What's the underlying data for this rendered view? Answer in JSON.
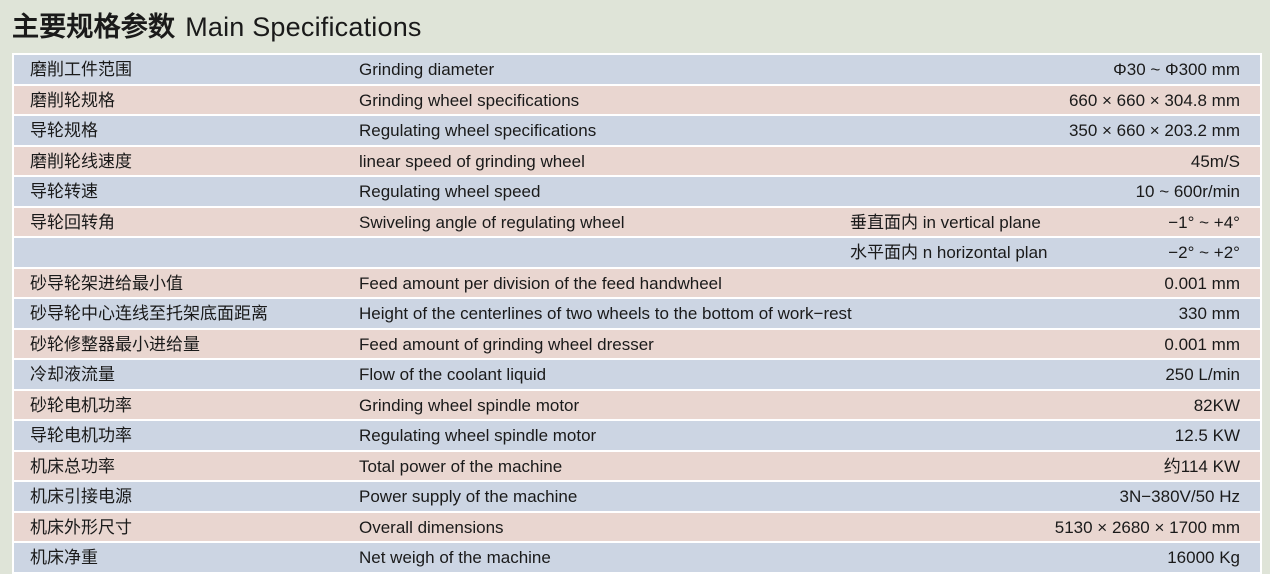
{
  "title": {
    "cn": "主要规格参数",
    "en": "Main Specifications"
  },
  "rows": [
    {
      "cn": "磨削工件范围",
      "en": "Grinding diameter",
      "sub": "",
      "value": "Φ30 ~ Φ300 mm",
      "color": "blue"
    },
    {
      "cn": "磨削轮规格",
      "en": "Grinding wheel specifications",
      "sub": "",
      "value": "660 × 660 × 304.8 mm",
      "color": "pink"
    },
    {
      "cn": "导轮规格",
      "en": "Regulating wheel specifications",
      "sub": "",
      "value": "350 × 660 × 203.2 mm",
      "color": "blue"
    },
    {
      "cn": "磨削轮线速度",
      "en": "linear speed of grinding wheel",
      "sub": "",
      "value": "45m/S",
      "color": "pink"
    },
    {
      "cn": "导轮转速",
      "en": "Regulating wheel speed",
      "sub": "",
      "value": "10 ~ 600r/min",
      "color": "blue"
    },
    {
      "cn": "导轮回转角",
      "en": "Swiveling angle of regulating wheel",
      "sub": "垂直面内 in vertical plane",
      "value": "−1°   ~ +4°",
      "color": "pink"
    },
    {
      "cn": "",
      "en": "",
      "sub": "水平面内 n horizontal plan",
      "value": "−2°   ~ +2°",
      "color": "blue"
    },
    {
      "cn": "砂导轮架进给最小值",
      "en": "Feed amount per division of the feed handwheel",
      "sub": "",
      "value": "0.001 mm",
      "color": "pink"
    },
    {
      "cn": "砂导轮中心连线至托架底面距离",
      "en": "Height of the centerlines of two wheels to the bottom of work−rest",
      "sub": "",
      "value": "330 mm",
      "color": "blue"
    },
    {
      "cn": "砂轮修整器最小进给量",
      "en": "Feed amount of grinding wheel dresser",
      "sub": "",
      "value": "0.001 mm",
      "color": "pink"
    },
    {
      "cn": "冷却液流量",
      "en": "Flow of the coolant liquid",
      "sub": "",
      "value": "250 L/min",
      "color": "blue"
    },
    {
      "cn": "砂轮电机功率",
      "en": "Grinding wheel spindle motor",
      "sub": "",
      "value": "82KW",
      "color": "pink"
    },
    {
      "cn": "导轮电机功率",
      "en": "Regulating wheel spindle motor",
      "sub": "",
      "value": "12.5 KW",
      "color": "blue"
    },
    {
      "cn": "机床总功率",
      "en": "Total power of the machine",
      "sub": "",
      "value": "约114 KW",
      "color": "pink"
    },
    {
      "cn": "机床引接电源",
      "en": "Power supply of the machine",
      "sub": "",
      "value": "3N−380V/50 Hz",
      "color": "blue"
    },
    {
      "cn": "机床外形尺寸",
      "en": "Overall dimensions",
      "sub": "",
      "value": "5130 × 2680 × 1700 mm",
      "color": "pink"
    },
    {
      "cn": "机床净重",
      "en": "Net weigh of the machine",
      "sub": "",
      "value": "16000 Kg",
      "color": "blue"
    }
  ],
  "colors": {
    "background": "#dfe4d8",
    "row_blue": "#ccd5e3",
    "row_pink": "#e9d6d0"
  }
}
